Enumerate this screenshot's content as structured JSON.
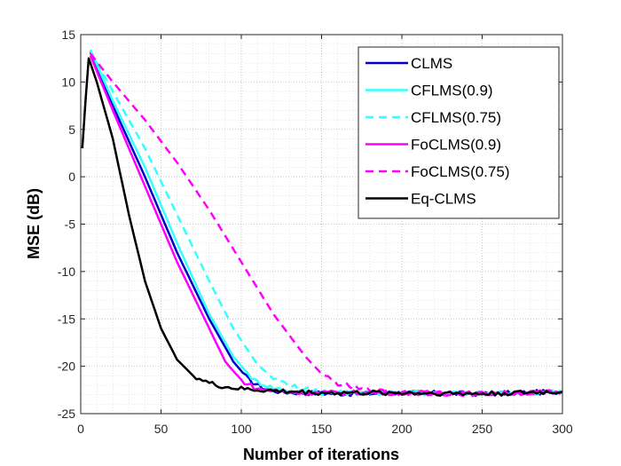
{
  "chart_data": {
    "type": "line",
    "title": "",
    "xlabel": "Number of iterations",
    "ylabel": "MSE (dB)",
    "xlim": [
      0,
      300
    ],
    "ylim": [
      -25,
      15
    ],
    "xticks": [
      0,
      50,
      100,
      150,
      200,
      250,
      300
    ],
    "yticks": [
      15,
      10,
      5,
      0,
      -5,
      -10,
      -15,
      -20,
      -25
    ],
    "grid": "major and minor, dotted",
    "legend_position": "top-right",
    "series": [
      {
        "name": "CLMS",
        "color": "#0000cc",
        "dash": "solid",
        "points": [
          [
            6,
            13.2
          ],
          [
            20,
            7.5
          ],
          [
            40,
            0
          ],
          [
            60,
            -8
          ],
          [
            80,
            -15
          ],
          [
            95,
            -19.5
          ],
          [
            105,
            -21.5
          ],
          [
            115,
            -22.4
          ],
          [
            125,
            -22.7
          ],
          [
            140,
            -22.8
          ],
          [
            170,
            -22.9
          ],
          [
            200,
            -22.8
          ],
          [
            250,
            -22.9
          ],
          [
            300,
            -22.7
          ]
        ]
      },
      {
        "name": "CFLMS(0.9)",
        "color": "#33ffff",
        "dash": "solid",
        "points": [
          [
            6,
            13.4
          ],
          [
            20,
            8
          ],
          [
            40,
            1
          ],
          [
            60,
            -7
          ],
          [
            80,
            -14.5
          ],
          [
            95,
            -19
          ],
          [
            108,
            -21.5
          ],
          [
            120,
            -22.3
          ],
          [
            135,
            -22.7
          ],
          [
            150,
            -22.8
          ],
          [
            200,
            -22.8
          ],
          [
            250,
            -22.9
          ],
          [
            300,
            -22.7
          ]
        ]
      },
      {
        "name": "CFLMS(0.75)",
        "color": "#33ffff",
        "dash": "dashed",
        "points": [
          [
            6,
            13.3
          ],
          [
            20,
            9
          ],
          [
            40,
            3
          ],
          [
            60,
            -4
          ],
          [
            80,
            -11
          ],
          [
            95,
            -16
          ],
          [
            110,
            -19.8
          ],
          [
            120,
            -21.3
          ],
          [
            135,
            -22.3
          ],
          [
            150,
            -22.7
          ],
          [
            170,
            -22.8
          ],
          [
            200,
            -22.8
          ],
          [
            250,
            -22.9
          ],
          [
            300,
            -22.7
          ]
        ]
      },
      {
        "name": "FoCLMS(0.9)",
        "color": "#ff00ff",
        "dash": "solid",
        "points": [
          [
            6,
            12.8
          ],
          [
            20,
            7
          ],
          [
            40,
            -1
          ],
          [
            60,
            -9
          ],
          [
            80,
            -16
          ],
          [
            90,
            -19.5
          ],
          [
            100,
            -21.5
          ],
          [
            110,
            -22.4
          ],
          [
            125,
            -22.7
          ],
          [
            140,
            -22.8
          ],
          [
            200,
            -22.8
          ],
          [
            250,
            -22.9
          ],
          [
            300,
            -22.7
          ]
        ]
      },
      {
        "name": "FoCLMS(0.75)",
        "color": "#ff00ff",
        "dash": "dashed",
        "points": [
          [
            6,
            13
          ],
          [
            20,
            10
          ],
          [
            40,
            6
          ],
          [
            60,
            1.5
          ],
          [
            80,
            -3.5
          ],
          [
            100,
            -9
          ],
          [
            120,
            -14.5
          ],
          [
            140,
            -19
          ],
          [
            150,
            -20.8
          ],
          [
            160,
            -21.8
          ],
          [
            175,
            -22.5
          ],
          [
            190,
            -22.7
          ],
          [
            200,
            -22.8
          ],
          [
            250,
            -22.9
          ],
          [
            300,
            -22.7
          ]
        ]
      },
      {
        "name": "Eq-CLMS",
        "color": "#000000",
        "dash": "solid",
        "points": [
          [
            1,
            3
          ],
          [
            3,
            8
          ],
          [
            5,
            12.5
          ],
          [
            10,
            10
          ],
          [
            20,
            4
          ],
          [
            30,
            -4
          ],
          [
            40,
            -11
          ],
          [
            50,
            -16
          ],
          [
            60,
            -19.3
          ],
          [
            70,
            -21
          ],
          [
            80,
            -21.8
          ],
          [
            90,
            -22.2
          ],
          [
            100,
            -22.4
          ],
          [
            120,
            -22.6
          ],
          [
            150,
            -22.8
          ],
          [
            200,
            -22.8
          ],
          [
            250,
            -22.9
          ],
          [
            300,
            -22.7
          ]
        ]
      }
    ]
  }
}
